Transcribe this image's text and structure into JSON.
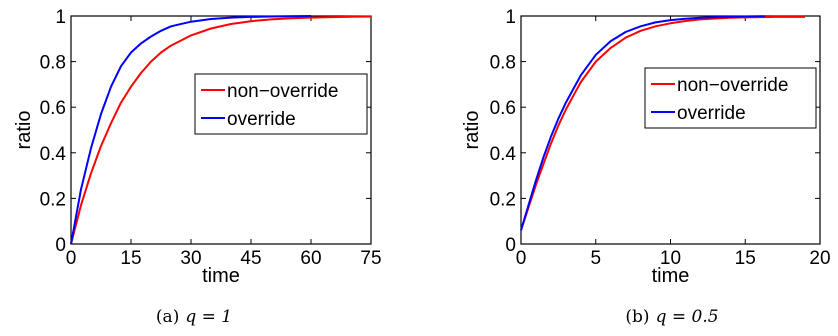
{
  "chart_data": [
    {
      "type": "line",
      "caption": "(a)",
      "caption_math": "q = 1",
      "xlabel": "time",
      "ylabel": "ratio",
      "xlim": [
        0,
        75
      ],
      "ylim": [
        0,
        1
      ],
      "xticks": [
        0,
        15,
        30,
        45,
        60,
        75
      ],
      "xtick_labels": [
        "0",
        "15",
        "30",
        "45",
        "60",
        "75"
      ],
      "yticks": [
        0,
        0.2,
        0.4,
        0.6,
        0.8,
        1
      ],
      "ytick_labels": [
        "0",
        "0.2",
        "0.4",
        "0.6",
        "0.8",
        "1"
      ],
      "grid": false,
      "legend_position": "center-right",
      "series": [
        {
          "name": "non−override",
          "color": "#ff0000",
          "x": [
            0,
            2.5,
            5,
            7.5,
            10,
            12.5,
            15,
            17.5,
            20,
            22.5,
            25,
            30,
            35,
            40,
            45,
            50,
            55,
            60,
            65,
            70,
            75
          ],
          "y": [
            0,
            0.17,
            0.31,
            0.43,
            0.53,
            0.62,
            0.69,
            0.75,
            0.8,
            0.84,
            0.87,
            0.915,
            0.945,
            0.965,
            0.977,
            0.985,
            0.99,
            0.993,
            0.995,
            0.997,
            0.998
          ]
        },
        {
          "name": "override",
          "color": "#0000ff",
          "x": [
            0,
            2.5,
            5,
            7.5,
            10,
            12.5,
            15,
            17.5,
            20,
            22.5,
            25,
            30,
            35,
            40,
            45,
            50,
            55,
            60
          ],
          "y": [
            0,
            0.24,
            0.42,
            0.57,
            0.69,
            0.78,
            0.84,
            0.88,
            0.91,
            0.935,
            0.955,
            0.975,
            0.987,
            0.993,
            0.996,
            0.998,
            0.999,
            1.0
          ]
        }
      ]
    },
    {
      "type": "line",
      "caption": "(b)",
      "caption_math": "q = 0.5",
      "xlabel": "time",
      "ylabel": "ratio",
      "xlim": [
        0,
        20
      ],
      "ylim": [
        0,
        1
      ],
      "xticks": [
        0,
        5,
        10,
        15,
        20
      ],
      "xtick_labels": [
        "0",
        "5",
        "10",
        "15",
        "20"
      ],
      "yticks": [
        0,
        0.2,
        0.4,
        0.6,
        0.8,
        1
      ],
      "ytick_labels": [
        "0",
        "0.2",
        "0.4",
        "0.6",
        "0.8",
        "1"
      ],
      "grid": false,
      "legend_position": "center-right",
      "series": [
        {
          "name": "non−override",
          "color": "#ff0000",
          "x": [
            0,
            0.5,
            1,
            1.5,
            2,
            2.5,
            3,
            3.5,
            4,
            5,
            6,
            7,
            8,
            9,
            10,
            11,
            12,
            13,
            14,
            15,
            16,
            17,
            18,
            19
          ],
          "y": [
            0.06,
            0.16,
            0.26,
            0.35,
            0.44,
            0.52,
            0.59,
            0.65,
            0.71,
            0.8,
            0.86,
            0.905,
            0.935,
            0.955,
            0.968,
            0.978,
            0.985,
            0.989,
            0.992,
            0.994,
            0.995,
            0.996,
            0.996,
            0.996
          ]
        },
        {
          "name": "override",
          "color": "#0000ff",
          "x": [
            0,
            0.5,
            1,
            1.5,
            2,
            2.5,
            3,
            3.5,
            4,
            5,
            6,
            7,
            8,
            9,
            10,
            11,
            12,
            13,
            14,
            15,
            16.3
          ],
          "y": [
            0.06,
            0.17,
            0.28,
            0.38,
            0.47,
            0.55,
            0.62,
            0.68,
            0.74,
            0.83,
            0.89,
            0.93,
            0.955,
            0.972,
            0.982,
            0.988,
            0.992,
            0.995,
            0.997,
            0.998,
            0.999
          ]
        }
      ]
    }
  ]
}
